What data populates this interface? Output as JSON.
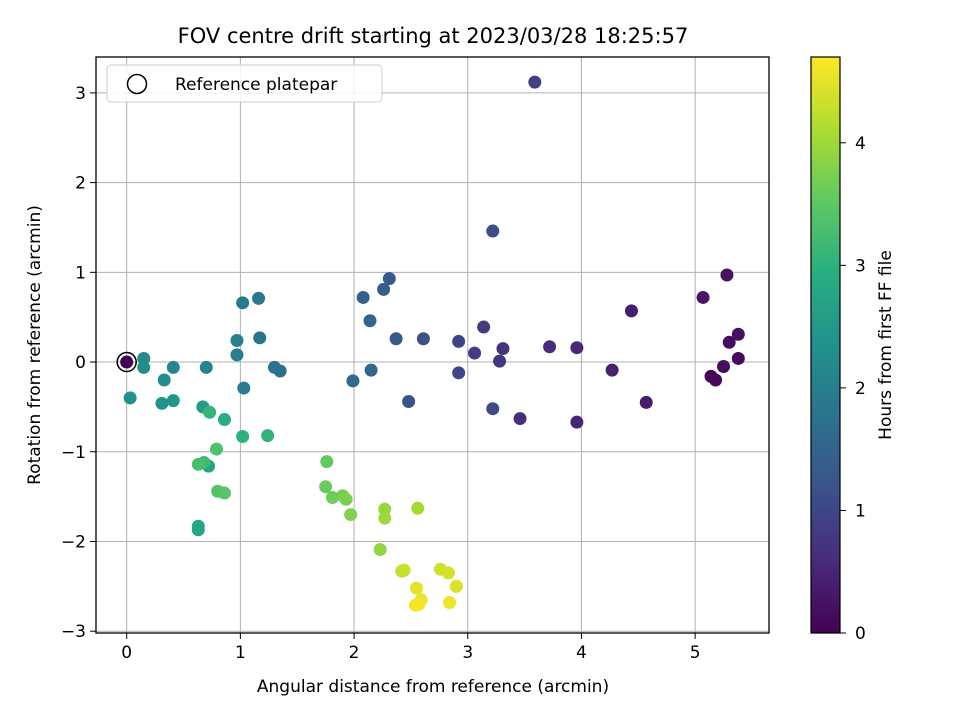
{
  "chart_data": {
    "type": "scatter",
    "title": "FOV centre drift starting at 2023/03/28 18:25:57",
    "xlabel": "Angular distance from reference (arcmin)",
    "ylabel": "Rotation from reference (arcmin)",
    "xlim": [
      -0.27,
      5.65
    ],
    "ylim": [
      -3.02,
      3.4
    ],
    "x_ticks": [
      0,
      1,
      2,
      3,
      4,
      5
    ],
    "y_ticks": [
      -3,
      -2,
      -1,
      0,
      1,
      2,
      3
    ],
    "grid": true,
    "legend": {
      "position": "top-left",
      "label": "Reference platepar"
    },
    "reference_point": {
      "x": 0,
      "y": 0
    },
    "colorbar": {
      "label": "Hours from first FF file",
      "colormap": "viridis",
      "range": [
        0,
        4.7
      ],
      "ticks": [
        0,
        1,
        2,
        3,
        4
      ]
    },
    "points": [
      {
        "x": 0.0,
        "y": 0.0,
        "h": 0.0
      },
      {
        "x": 5.14,
        "y": -0.16,
        "h": 0.05
      },
      {
        "x": 5.18,
        "y": -0.2,
        "h": 0.1
      },
      {
        "x": 5.38,
        "y": 0.04,
        "h": 0.12
      },
      {
        "x": 5.3,
        "y": 0.22,
        "h": 0.15
      },
      {
        "x": 5.25,
        "y": -0.05,
        "h": 0.18
      },
      {
        "x": 5.38,
        "y": 0.31,
        "h": 0.2
      },
      {
        "x": 5.28,
        "y": 0.97,
        "h": 0.25
      },
      {
        "x": 5.07,
        "y": 0.72,
        "h": 0.3
      },
      {
        "x": 4.57,
        "y": -0.45,
        "h": 0.35
      },
      {
        "x": 4.44,
        "y": 0.57,
        "h": 0.4
      },
      {
        "x": 4.27,
        "y": -0.09,
        "h": 0.45
      },
      {
        "x": 3.96,
        "y": -0.67,
        "h": 0.5
      },
      {
        "x": 3.96,
        "y": 0.16,
        "h": 0.55
      },
      {
        "x": 3.72,
        "y": 0.17,
        "h": 0.6
      },
      {
        "x": 3.46,
        "y": -0.63,
        "h": 0.65
      },
      {
        "x": 3.31,
        "y": 0.15,
        "h": 0.7
      },
      {
        "x": 3.28,
        "y": 0.01,
        "h": 0.75
      },
      {
        "x": 3.14,
        "y": 0.39,
        "h": 0.8
      },
      {
        "x": 3.06,
        "y": 0.1,
        "h": 0.85
      },
      {
        "x": 3.59,
        "y": 3.12,
        "h": 0.9
      },
      {
        "x": 2.92,
        "y": 0.23,
        "h": 0.95
      },
      {
        "x": 2.92,
        "y": -0.12,
        "h": 1.0
      },
      {
        "x": 3.22,
        "y": -0.52,
        "h": 1.05
      },
      {
        "x": 3.22,
        "y": 1.46,
        "h": 1.1
      },
      {
        "x": 2.61,
        "y": 0.26,
        "h": 1.15
      },
      {
        "x": 2.48,
        "y": -0.44,
        "h": 1.2
      },
      {
        "x": 2.37,
        "y": 0.26,
        "h": 1.3
      },
      {
        "x": 2.31,
        "y": 0.93,
        "h": 1.35
      },
      {
        "x": 2.26,
        "y": 0.81,
        "h": 1.4
      },
      {
        "x": 2.08,
        "y": 0.72,
        "h": 1.45
      },
      {
        "x": 2.14,
        "y": 0.46,
        "h": 1.5
      },
      {
        "x": 2.15,
        "y": -0.09,
        "h": 1.55
      },
      {
        "x": 1.99,
        "y": -0.21,
        "h": 1.6
      },
      {
        "x": 1.35,
        "y": -0.1,
        "h": 1.7
      },
      {
        "x": 1.3,
        "y": -0.06,
        "h": 1.75
      },
      {
        "x": 1.17,
        "y": 0.27,
        "h": 1.8
      },
      {
        "x": 1.16,
        "y": 0.71,
        "h": 1.85
      },
      {
        "x": 1.02,
        "y": 0.66,
        "h": 1.9
      },
      {
        "x": 1.03,
        "y": -0.29,
        "h": 1.95
      },
      {
        "x": 0.97,
        "y": 0.08,
        "h": 2.0
      },
      {
        "x": 0.97,
        "y": 0.24,
        "h": 2.05
      },
      {
        "x": 0.7,
        "y": -0.06,
        "h": 2.1
      },
      {
        "x": 0.41,
        "y": -0.06,
        "h": 2.15
      },
      {
        "x": 0.15,
        "y": 0.04,
        "h": 2.2
      },
      {
        "x": 0.15,
        "y": -0.06,
        "h": 2.25
      },
      {
        "x": 0.33,
        "y": -0.2,
        "h": 2.3
      },
      {
        "x": 0.03,
        "y": -0.4,
        "h": 2.35
      },
      {
        "x": 0.31,
        "y": -0.46,
        "h": 2.4
      },
      {
        "x": 0.41,
        "y": -0.43,
        "h": 2.45
      },
      {
        "x": 0.67,
        "y": -0.5,
        "h": 2.55
      },
      {
        "x": 0.72,
        "y": -1.16,
        "h": 2.7
      },
      {
        "x": 0.63,
        "y": -1.83,
        "h": 2.75
      },
      {
        "x": 0.63,
        "y": -1.87,
        "h": 2.8
      },
      {
        "x": 0.86,
        "y": -0.64,
        "h": 2.95
      },
      {
        "x": 1.02,
        "y": -0.83,
        "h": 3.0
      },
      {
        "x": 1.24,
        "y": -0.82,
        "h": 3.05
      },
      {
        "x": 0.73,
        "y": -0.56,
        "h": 3.1
      },
      {
        "x": 0.68,
        "y": -1.12,
        "h": 3.2
      },
      {
        "x": 0.63,
        "y": -1.14,
        "h": 3.3
      },
      {
        "x": 0.79,
        "y": -0.97,
        "h": 3.35
      },
      {
        "x": 0.8,
        "y": -1.44,
        "h": 3.4
      },
      {
        "x": 0.86,
        "y": -1.46,
        "h": 3.45
      },
      {
        "x": 1.76,
        "y": -1.11,
        "h": 3.55
      },
      {
        "x": 1.75,
        "y": -1.39,
        "h": 3.6
      },
      {
        "x": 1.81,
        "y": -1.51,
        "h": 3.65
      },
      {
        "x": 1.9,
        "y": -1.49,
        "h": 3.7
      },
      {
        "x": 1.93,
        "y": -1.53,
        "h": 3.75
      },
      {
        "x": 1.97,
        "y": -1.7,
        "h": 3.8
      },
      {
        "x": 2.23,
        "y": -2.09,
        "h": 3.9
      },
      {
        "x": 2.27,
        "y": -1.64,
        "h": 3.95
      },
      {
        "x": 2.27,
        "y": -1.74,
        "h": 4.0
      },
      {
        "x": 2.56,
        "y": -1.63,
        "h": 4.05
      },
      {
        "x": 2.42,
        "y": -2.33,
        "h": 4.25
      },
      {
        "x": 2.44,
        "y": -2.32,
        "h": 4.3
      },
      {
        "x": 2.76,
        "y": -2.31,
        "h": 4.35
      },
      {
        "x": 2.83,
        "y": -2.35,
        "h": 4.4
      },
      {
        "x": 2.9,
        "y": -2.5,
        "h": 4.45
      },
      {
        "x": 2.55,
        "y": -2.52,
        "h": 4.5
      },
      {
        "x": 2.59,
        "y": -2.65,
        "h": 4.55
      },
      {
        "x": 2.84,
        "y": -2.68,
        "h": 4.6
      },
      {
        "x": 2.54,
        "y": -2.71,
        "h": 4.62
      },
      {
        "x": 2.57,
        "y": -2.7,
        "h": 4.65
      }
    ]
  }
}
